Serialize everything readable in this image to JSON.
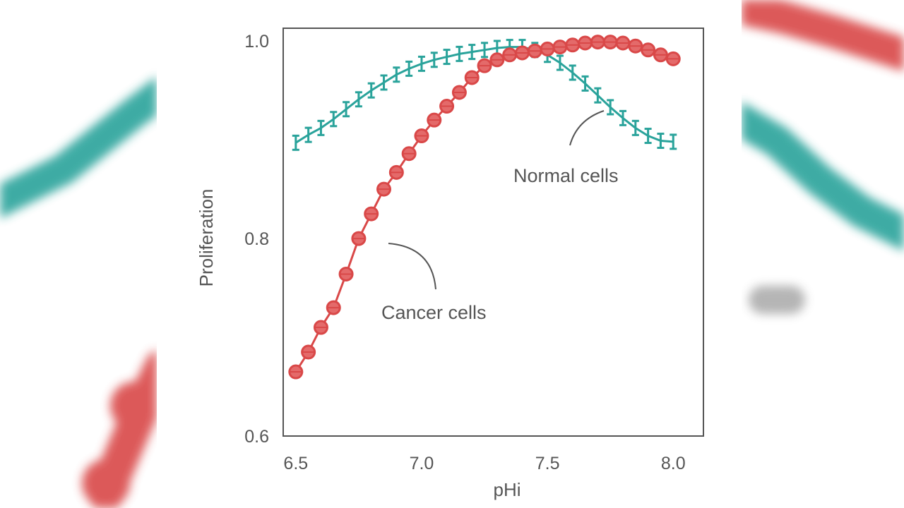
{
  "chart_data": {
    "type": "line",
    "title": "",
    "xlabel": "pHi",
    "ylabel": "Proliferation",
    "xlim": [
      6.45,
      8.12
    ],
    "ylim": [
      0.6,
      1.013
    ],
    "xticks": [
      6.5,
      7.0,
      7.5,
      8.0
    ],
    "xtick_labels": [
      "6.5",
      "7.0",
      "7.5",
      "8.0"
    ],
    "yticks": [
      0.6,
      0.8,
      1.0
    ],
    "ytick_labels": [
      "0.6",
      "0.8",
      "1.0"
    ],
    "grid": false,
    "legend": "none",
    "series": [
      {
        "name": "Normal cells",
        "color": "#2aa39b",
        "marker": "error-bar",
        "x": [
          6.5,
          6.55,
          6.6,
          6.65,
          6.7,
          6.75,
          6.8,
          6.85,
          6.9,
          6.95,
          7.0,
          7.05,
          7.1,
          7.15,
          7.2,
          7.25,
          7.3,
          7.35,
          7.4,
          7.45,
          7.5,
          7.55,
          7.6,
          7.65,
          7.7,
          7.75,
          7.8,
          7.85,
          7.9,
          7.95,
          8.0
        ],
        "values": [
          0.897,
          0.905,
          0.912,
          0.921,
          0.931,
          0.941,
          0.95,
          0.958,
          0.966,
          0.972,
          0.977,
          0.981,
          0.984,
          0.987,
          0.989,
          0.991,
          0.993,
          0.994,
          0.994,
          0.991,
          0.986,
          0.978,
          0.968,
          0.957,
          0.945,
          0.933,
          0.922,
          0.912,
          0.904,
          0.899,
          0.898
        ]
      },
      {
        "name": "Cancer cells",
        "color": "#d94848",
        "marker": "circle",
        "x": [
          6.5,
          6.55,
          6.6,
          6.65,
          6.7,
          6.75,
          6.8,
          6.85,
          6.9,
          6.95,
          7.0,
          7.05,
          7.1,
          7.15,
          7.2,
          7.25,
          7.3,
          7.35,
          7.4,
          7.45,
          7.5,
          7.55,
          7.6,
          7.65,
          7.7,
          7.75,
          7.8,
          7.85,
          7.9,
          7.95,
          8.0
        ],
        "values": [
          0.665,
          0.685,
          0.71,
          0.73,
          0.764,
          0.8,
          0.825,
          0.85,
          0.867,
          0.886,
          0.904,
          0.92,
          0.934,
          0.948,
          0.963,
          0.975,
          0.981,
          0.986,
          0.988,
          0.99,
          0.992,
          0.994,
          0.996,
          0.998,
          0.999,
          0.999,
          0.998,
          0.995,
          0.991,
          0.986,
          0.982
        ]
      }
    ],
    "annotations": [
      {
        "text": "Normal cells",
        "series": "Normal cells"
      },
      {
        "text": "Cancer cells",
        "series": "Cancer cells"
      }
    ]
  }
}
